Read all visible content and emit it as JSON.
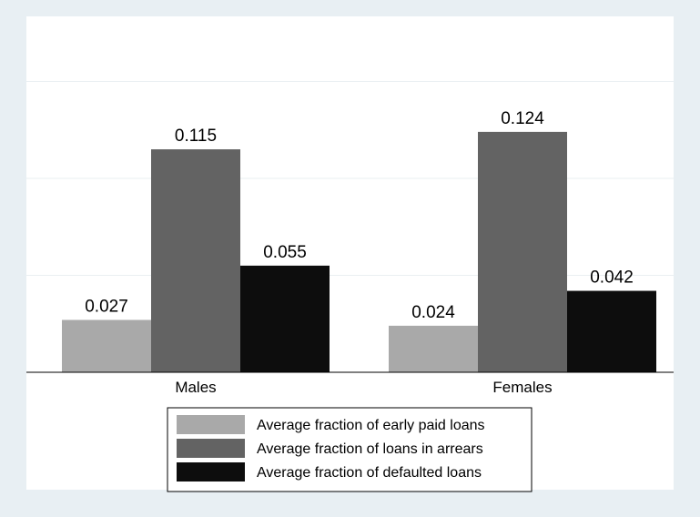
{
  "chart_data": {
    "type": "bar",
    "categories": [
      "Males",
      "Females"
    ],
    "series": [
      {
        "name": "Average fraction of early paid loans",
        "values": [
          0.027,
          0.024
        ],
        "color": "#a9a9a9"
      },
      {
        "name": "Average fraction of loans in arrears",
        "values": [
          0.115,
          0.124
        ],
        "color": "#636363"
      },
      {
        "name": "Average fraction of defaulted loans",
        "values": [
          0.055,
          0.042
        ],
        "color": "#0d0d0d"
      }
    ],
    "data_labels": [
      [
        "0.027",
        "0.024"
      ],
      [
        "0.115",
        "0.124"
      ],
      [
        "0.055",
        "0.042"
      ]
    ],
    "title": "",
    "xlabel": "",
    "ylabel": "",
    "ylim": [
      0,
      0.15
    ],
    "grid": true,
    "legend_position": "bottom-center",
    "colors": {
      "outer_background": "#e8eff3",
      "plot_background": "#ffffff",
      "gridline": "#eaeff2",
      "axis": "#000000"
    }
  }
}
